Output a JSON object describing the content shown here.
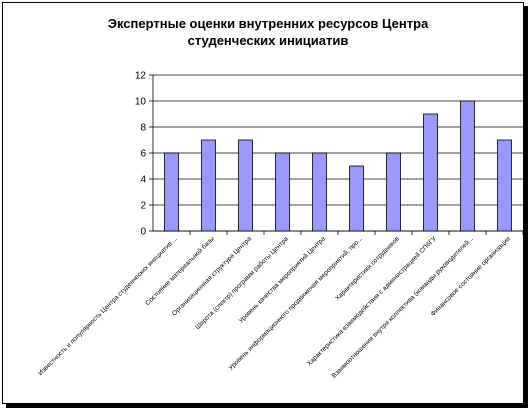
{
  "chart_data": {
    "type": "bar",
    "title_lines": [
      "Экспертные оценки внутренних ресурсов Центра",
      "студенческих инициатив"
    ],
    "categories": [
      "Известность и популярность Центра студенческих инициатив ...",
      "Состояние материальной базы",
      "Организационная структура Центра",
      "Широта (спектр) программ работы Центра",
      "Уровень качества мероприятий Центра",
      "Уровень информационного продвижения мероприятий, про...",
      "Характеристики сотрудников",
      "Характеристика взаимодействия с администрацией СПбГУ",
      "Взаимоотношения внутри коллектива (команды руководителей...",
      "Финансовое состояние организации"
    ],
    "values": [
      6,
      7,
      7,
      6,
      6,
      5,
      6,
      9,
      10,
      7
    ],
    "yticks": [
      "0",
      "2",
      "4",
      "6",
      "8",
      "10",
      "12"
    ],
    "ylim": [
      0,
      12
    ],
    "grid": true,
    "legend": "none",
    "bar_color": "#9999ff",
    "bar_stroke": "#000000"
  }
}
